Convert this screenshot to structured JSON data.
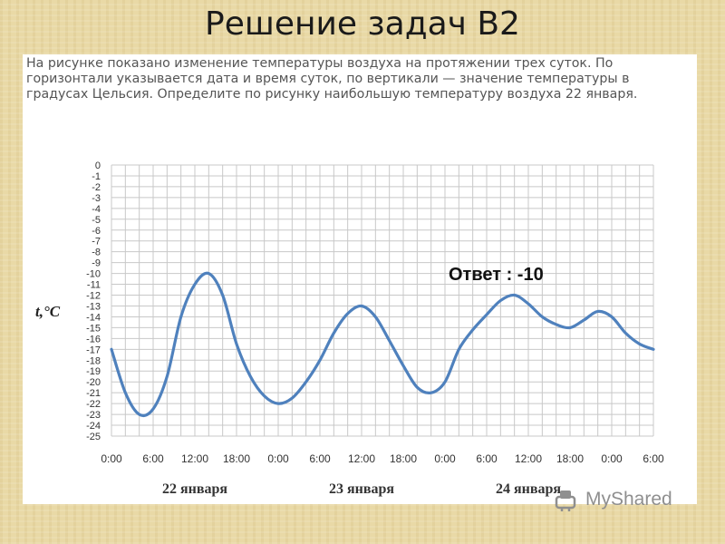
{
  "slide": {
    "title": "Решение задач В2"
  },
  "problem": {
    "text": "На рисунке показано изменение температуры воздуха на протяжении трех суток. По горизонтали указывается дата и время суток, по вертикали — значение температуры в градусах Цельсия. Определите по рисунку наибольшую температуру воздуха 22 января."
  },
  "answer": {
    "text": "Ответ : -10"
  },
  "watermark": {
    "text": "MyShared"
  },
  "colors": {
    "line": "#4f81bd",
    "grid": "#c8c8c8",
    "axis_text": "#555555"
  },
  "chart_data": {
    "type": "line",
    "title": "",
    "xlabel": "",
    "ylabel": "t,°C",
    "ylim": [
      -25,
      0
    ],
    "yticks": [
      "0",
      "-1",
      "-2",
      "-3",
      "-4",
      "-5",
      "-6",
      "-7",
      "-8",
      "-9",
      "-10",
      "-11",
      "-12",
      "-13",
      "-14",
      "-15",
      "-16",
      "-17",
      "-18",
      "-19",
      "-20",
      "-21",
      "-22",
      "-23",
      "-24",
      "-25"
    ],
    "xticks": [
      "0:00",
      "6:00",
      "12:00",
      "18:00",
      "0:00",
      "6:00",
      "12:00",
      "18:00",
      "0:00",
      "6:00",
      "12:00",
      "18:00",
      "0:00",
      "6:00"
    ],
    "day_labels": [
      "22 января",
      "23 января",
      "24 января"
    ],
    "grid": true,
    "series": [
      {
        "x": [
          0,
          2,
          4,
          6,
          8,
          10,
          12,
          14,
          16,
          18,
          20,
          22,
          24,
          26,
          28,
          30,
          32,
          34,
          36,
          38,
          40,
          42,
          44,
          46,
          48,
          50,
          52,
          54,
          56,
          58,
          60,
          62,
          64,
          66,
          68,
          70,
          72,
          74,
          76,
          78
        ],
        "values": [
          -17,
          -21,
          -23,
          -22.5,
          -19.5,
          -14,
          -11,
          -10,
          -12,
          -16.5,
          -19.5,
          -21.3,
          -22,
          -21.5,
          -20,
          -18,
          -15.5,
          -13.7,
          -13,
          -14,
          -16.2,
          -18.5,
          -20.5,
          -21,
          -20,
          -17,
          -15.2,
          -13.8,
          -12.5,
          -12,
          -12.8,
          -14,
          -14.7,
          -15,
          -14.3,
          -13.5,
          -14,
          -15.5,
          -16.5,
          -17
        ]
      }
    ]
  }
}
